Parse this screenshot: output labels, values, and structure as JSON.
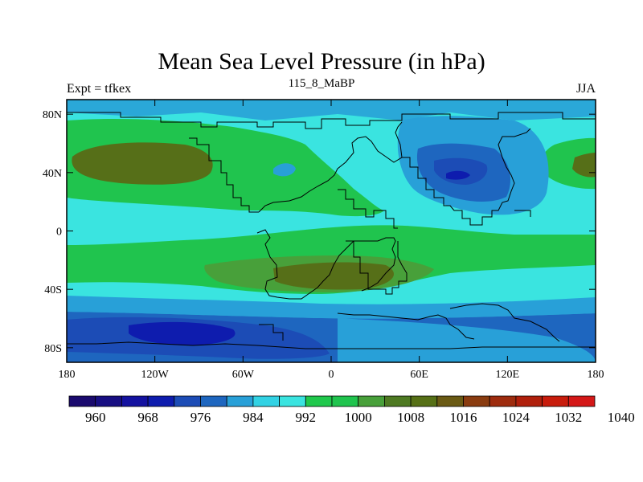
{
  "title": "Mean Sea Level Pressure (in hPa)",
  "subtitle_left": "Expt = tfkex",
  "subtitle_center": "115_8_MaBP",
  "subtitle_right": "JJA",
  "map": {
    "lon_range": [
      -180,
      180
    ],
    "lat_range": [
      -90,
      90
    ],
    "x_ticks": [
      {
        "value": -180,
        "label": "180"
      },
      {
        "value": -120,
        "label": "120W"
      },
      {
        "value": -60,
        "label": "60W"
      },
      {
        "value": 0,
        "label": "0"
      },
      {
        "value": 60,
        "label": "60E"
      },
      {
        "value": 120,
        "label": "120E"
      },
      {
        "value": 180,
        "label": "180"
      }
    ],
    "y_ticks": [
      {
        "value": 80,
        "label": "80N"
      },
      {
        "value": 40,
        "label": "40N"
      },
      {
        "value": 0,
        "label": "0"
      },
      {
        "value": -40,
        "label": "40S"
      },
      {
        "value": -80,
        "label": "80S"
      }
    ]
  },
  "colorbar": {
    "colors": [
      "#1a0a6e",
      "#180e82",
      "#1412a0",
      "#0e1cae",
      "#1c4cb6",
      "#1e66bf",
      "#28a0d8",
      "#32d2e4",
      "#3ae4e0",
      "#20c84c",
      "#20c44e",
      "#48a03a",
      "#4e7a22",
      "#567016",
      "#6a5a14",
      "#8a3c10",
      "#9e2c0e",
      "#b0200c",
      "#c81c0c",
      "#d41818"
    ],
    "labels": [
      "960",
      "968",
      "976",
      "984",
      "992",
      "1000",
      "1008",
      "1016",
      "1024",
      "1032",
      "1040"
    ]
  }
}
